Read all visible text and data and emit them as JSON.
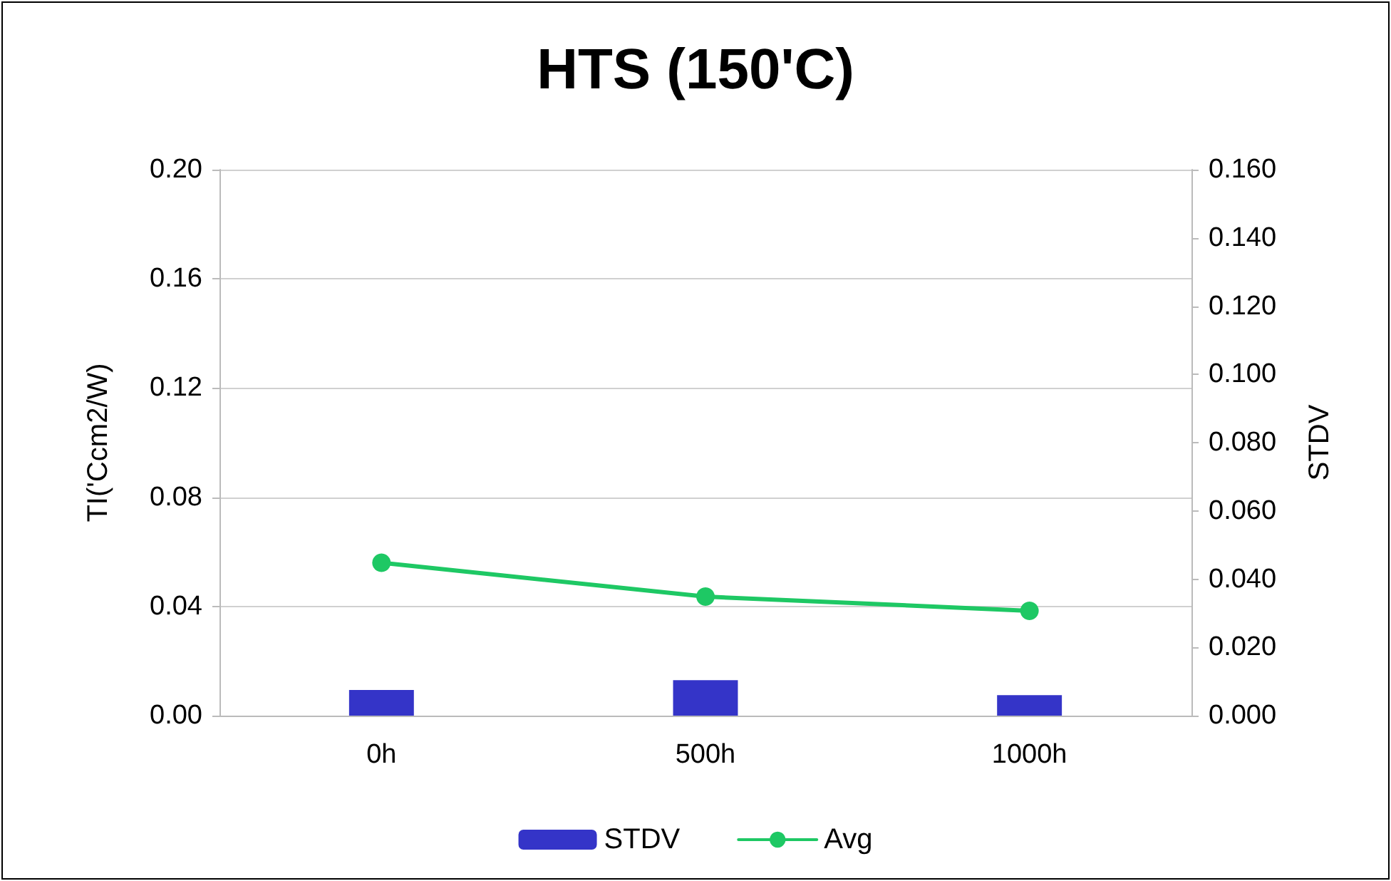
{
  "chart_data": {
    "type": "bar",
    "title": "HTS (150'C)",
    "ylabel": "TI('Ccm2/W)",
    "y2label": "STDV",
    "categories": [
      "0h",
      "500h",
      "1000h"
    ],
    "series": [
      {
        "name": "STDV",
        "axis": "y2",
        "color": "#3434c8",
        "values": [
          0.0075,
          0.0104,
          0.006
        ]
      },
      {
        "name": "Avg",
        "type": "line",
        "axis": "y",
        "color": "#1ec864",
        "values": [
          0.056,
          0.0436,
          0.0384
        ]
      }
    ],
    "ylim": [
      0,
      0.2
    ],
    "yticks": [
      {
        "value": 0,
        "label": "0.00"
      },
      {
        "value": 0.04,
        "label": "0.04"
      },
      {
        "value": 0.08,
        "label": "0.08"
      },
      {
        "value": 0.12,
        "label": "0.12"
      },
      {
        "value": 0.16,
        "label": "0.16"
      },
      {
        "value": 0.2,
        "label": "0.20"
      }
    ],
    "y2lim": [
      0,
      0.16
    ],
    "y2ticks": [
      {
        "value": 0,
        "label": "0.000"
      },
      {
        "value": 0.02,
        "label": "0.020"
      },
      {
        "value": 0.04,
        "label": "0.040"
      },
      {
        "value": 0.06,
        "label": "0.060"
      },
      {
        "value": 0.08,
        "label": "0.080"
      },
      {
        "value": 0.1,
        "label": "0.100"
      },
      {
        "value": 0.12,
        "label": "0.120"
      },
      {
        "value": 0.14,
        "label": "0.140"
      },
      {
        "value": 0.16,
        "label": "0.160"
      }
    ],
    "grid": "y",
    "legend": "bottom",
    "marker": "circle",
    "line_style": "solid"
  }
}
